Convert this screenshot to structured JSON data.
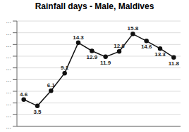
{
  "chart_data": {
    "type": "line",
    "title": "Rainfall days - Male, Maldives",
    "x": [
      1,
      2,
      3,
      4,
      5,
      6,
      7,
      8,
      9,
      10,
      11,
      12
    ],
    "values": [
      4.6,
      3.5,
      6.1,
      9.1,
      14.3,
      12.9,
      11.9,
      12.8,
      15.8,
      14.6,
      13.3,
      11.8
    ],
    "xlim": [
      0.5,
      12.5
    ],
    "xticks": [],
    "ylim": [
      0,
      18
    ],
    "yticks": [
      {
        "value": 0,
        "label": "..."
      },
      {
        "value": 2,
        "label": "..."
      },
      {
        "value": 4,
        "label": "..."
      },
      {
        "value": 6,
        "label": "..."
      },
      {
        "value": 8,
        "label": "..."
      },
      {
        "value": 10,
        "label": "..."
      },
      {
        "value": 12,
        "label": "..."
      },
      {
        "value": 14,
        "label": "..."
      },
      {
        "value": 16,
        "label": "..."
      },
      {
        "value": 18,
        "label": "..."
      }
    ],
    "grid": true,
    "data_labels": true,
    "tick_labels": "y",
    "color": "#111111",
    "marker": "circle"
  }
}
